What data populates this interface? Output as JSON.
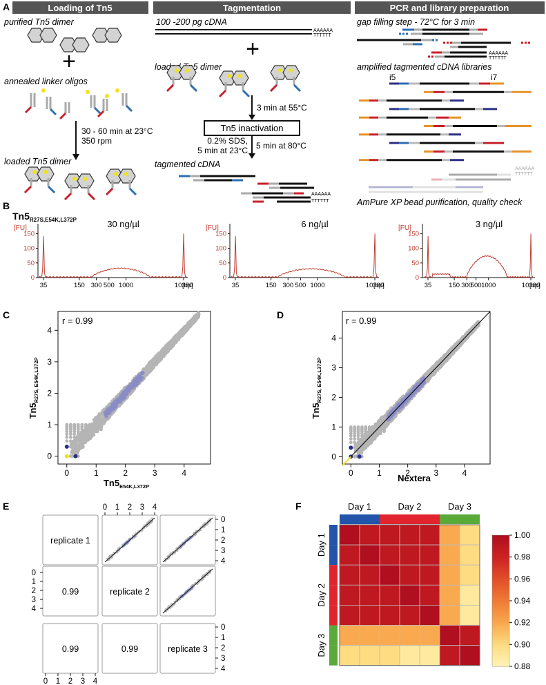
{
  "colors": {
    "header_bg": "#555555",
    "red": "#c8202a",
    "blue": "#2d6eb0",
    "yellow": "#f2e21c",
    "orange": "#e6932a",
    "navy": "#2b2f86",
    "grey": "#b9b9b9",
    "trace": "#c0392b",
    "scatter": "#b5b5b5",
    "density": "#8a8dc7",
    "day1": "#2255aa",
    "day2": "#e0252f",
    "day3": "#5aaa3a"
  },
  "panelA": {
    "letter": "A",
    "header1": "Loading of Tn5",
    "header2": "Tagmentation",
    "header3": "PCR and library preparation",
    "left": {
      "t1": "purified Tn5 dimer",
      "t2": "annealed linker oligos",
      "t3": "loaded Tn5 dimer",
      "cond1": "30 - 60 min at 23°C",
      "cond2": "350 rpm"
    },
    "mid": {
      "t1": "100 -200 pg cDNA",
      "t2": "loaded Tn5 dimer",
      "step1": "3 min at 55°C",
      "box": "Tn5 inactivation",
      "sds1": "0.2% SDS,",
      "sds2": "5 min at 23°C",
      "heat": "5 min at 80°C",
      "t3": "tagmented cDNA",
      "polyA": "AAAAAA",
      "polyT": "TTTTTT"
    },
    "right": {
      "t1": "gap filling step - 72°C for 3 min",
      "t2": "amplified tagmented cDNA libraries",
      "i5": "i5",
      "i7": "i7",
      "t3": "AmPure XP bead purification, quality check"
    }
  },
  "panelB": {
    "letter": "B",
    "enzyme": "Tn5",
    "enzyme_sub": "R27S,E54K,L372P",
    "ylabel": "[FU]",
    "xunit": "[bp]",
    "yticks": [
      "150",
      "100",
      "50",
      "0"
    ],
    "xticks": [
      "35",
      "150",
      "300",
      "500",
      "1000",
      "10380"
    ],
    "plots": [
      {
        "title": "30 ng/µl",
        "hump_height": 30,
        "hump_start": 250,
        "hump_end": 2600
      },
      {
        "title": "6 ng/µl",
        "hump_height": 28,
        "hump_start": 200,
        "hump_end": 3000
      },
      {
        "title": "3 ng/µl",
        "hump_height": 72,
        "hump_start": 300,
        "hump_end": 2800
      }
    ]
  },
  "panelC": {
    "letter": "C",
    "r": "r = 0.99",
    "ylabel": "Tn5",
    "ylabel_sub": "R27S, E54K,L372P",
    "xlabel": "Tn5",
    "xlabel_sub": "E54K,L372P",
    "xticks": [
      "0",
      "1",
      "2",
      "3",
      "4"
    ],
    "yticks": [
      "0",
      "1",
      "2",
      "3",
      "4"
    ],
    "xlim": [
      -0.3,
      4.9
    ],
    "ylim": [
      -0.25,
      4.6
    ]
  },
  "panelD": {
    "letter": "D",
    "r": "r = 0.99",
    "ylabel": "Tn5",
    "ylabel_sub": "R27S, E54K,L372P",
    "xlabel": "Nextera",
    "xticks": [
      "0",
      "1",
      "2",
      "3",
      "4"
    ],
    "yticks": [
      "0",
      "1",
      "2",
      "3",
      "4"
    ],
    "xlim": [
      -0.3,
      4.9
    ],
    "ylim": [
      -0.25,
      4.9
    ]
  },
  "panelE": {
    "letter": "E",
    "diag": [
      "replicate 1",
      "replicate 2",
      "replicate 3"
    ],
    "lower": [
      "0.99",
      "0.99",
      "0.99"
    ],
    "ticks": [
      "0",
      "1",
      "2",
      "3",
      "4"
    ]
  },
  "panelF": {
    "letter": "F",
    "days": [
      "Day 1",
      "Day 2",
      "Day 3"
    ],
    "legend_ticks": [
      "1.00",
      "0.98",
      "0.96",
      "0.94",
      "0.92",
      "0.90",
      "0.88"
    ],
    "groups": [
      1,
      1,
      2,
      2,
      2,
      3,
      3
    ],
    "chart_data": {
      "type": "heatmap",
      "row_groups": [
        "Day 1",
        "Day 1",
        "Day 2",
        "Day 2",
        "Day 2",
        "Day 3",
        "Day 3"
      ],
      "col_groups": [
        "Day 1",
        "Day 1",
        "Day 2",
        "Day 2",
        "Day 2",
        "Day 3",
        "Day 3"
      ],
      "scale": [
        0.88,
        1.0
      ],
      "matrix": [
        [
          1.0,
          0.99,
          0.99,
          0.99,
          0.99,
          0.92,
          0.9
        ],
        [
          0.99,
          1.0,
          0.99,
          0.99,
          0.99,
          0.92,
          0.9
        ],
        [
          0.99,
          0.99,
          1.0,
          0.99,
          0.99,
          0.92,
          0.9
        ],
        [
          0.99,
          0.99,
          0.99,
          1.0,
          0.99,
          0.92,
          0.89
        ],
        [
          0.99,
          0.99,
          0.99,
          0.99,
          1.0,
          0.92,
          0.89
        ],
        [
          0.92,
          0.92,
          0.92,
          0.92,
          0.92,
          1.0,
          0.99
        ],
        [
          0.9,
          0.9,
          0.9,
          0.89,
          0.89,
          0.99,
          1.0
        ]
      ]
    }
  }
}
